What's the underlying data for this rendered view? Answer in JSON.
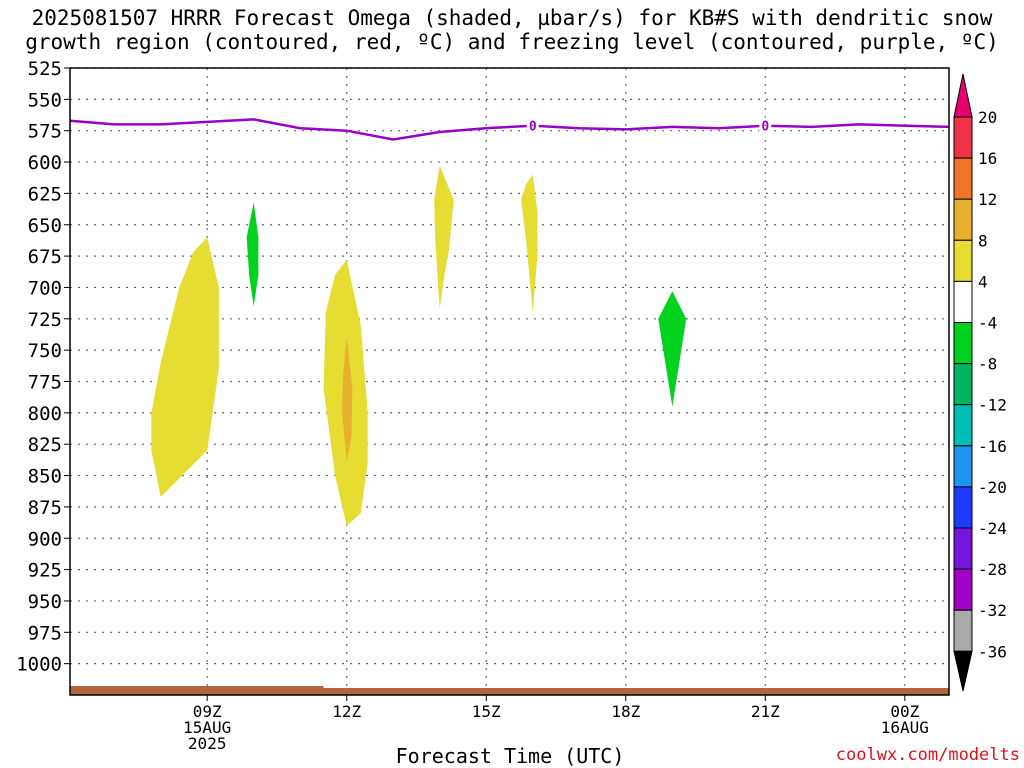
{
  "title_line1": "2025081507 HRRR Forecast Omega (shaded, µbar/s) for KB#S with dendritic snow",
  "title_line2": "growth region (contoured, red, ºC) and freezing level (contoured, purple, ºC)",
  "xlabel": "Forecast Time (UTC)",
  "credit": "coolwx.com/modelts",
  "chart_data": {
    "type": "contour",
    "x_unit": "hours after 2025-08-15 00Z",
    "y_axis_reversed": true,
    "xlim": [
      6.05,
      24.95
    ],
    "ylim": [
      1025,
      525
    ],
    "y_ticks": [
      525,
      550,
      575,
      600,
      625,
      650,
      675,
      700,
      725,
      750,
      775,
      800,
      825,
      850,
      875,
      900,
      925,
      950,
      975,
      1000
    ],
    "y_tick_labels": [
      "525",
      "550",
      "575",
      "600",
      "625",
      "650",
      "675",
      "700",
      "725",
      "750",
      "775",
      "800",
      "825",
      "850",
      "875",
      "900",
      "925",
      "950",
      "975",
      "1000"
    ],
    "x_ticks": [
      {
        "x": 9,
        "lines": [
          "09Z",
          "15AUG",
          "2025"
        ]
      },
      {
        "x": 12,
        "lines": [
          "12Z"
        ]
      },
      {
        "x": 15,
        "lines": [
          "15Z"
        ]
      },
      {
        "x": 18,
        "lines": [
          "18Z"
        ]
      },
      {
        "x": 21,
        "lines": [
          "21Z"
        ]
      },
      {
        "x": 24,
        "lines": [
          "00Z",
          "16AUG"
        ]
      }
    ],
    "grid": true,
    "freezing_level": {
      "contour_value": "0",
      "color": "#9b00c8",
      "label_positions": [
        16,
        21
      ],
      "points": [
        [
          6.05,
          567
        ],
        [
          7,
          570
        ],
        [
          8,
          570
        ],
        [
          9,
          568
        ],
        [
          10,
          566
        ],
        [
          11,
          573
        ],
        [
          12,
          575
        ],
        [
          13,
          582
        ],
        [
          14,
          576
        ],
        [
          15,
          573
        ],
        [
          16,
          571
        ],
        [
          17,
          573
        ],
        [
          18,
          574
        ],
        [
          19,
          572
        ],
        [
          20,
          573
        ],
        [
          21,
          571
        ],
        [
          22,
          572
        ],
        [
          23,
          570
        ],
        [
          24.95,
          572
        ]
      ]
    },
    "shaded_regions": [
      {
        "range": "4 to 8",
        "color": "#e6dc32",
        "points": [
          [
            9.0,
            660
          ],
          [
            9.25,
            700
          ],
          [
            9.25,
            765
          ],
          [
            9.0,
            830
          ],
          [
            8.0,
            867
          ],
          [
            7.8,
            830
          ],
          [
            7.8,
            800
          ],
          [
            8.0,
            760
          ],
          [
            8.4,
            700
          ],
          [
            8.7,
            672
          ]
        ]
      },
      {
        "range": "-4 to -8",
        "color": "#00d21e",
        "points": [
          [
            10.0,
            632
          ],
          [
            10.1,
            660
          ],
          [
            10.1,
            690
          ],
          [
            10.0,
            715
          ],
          [
            9.9,
            690
          ],
          [
            9.85,
            660
          ]
        ]
      },
      {
        "range": "4 to 8",
        "color": "#e6dc32",
        "points": [
          [
            12.0,
            678
          ],
          [
            12.3,
            730
          ],
          [
            12.45,
            800
          ],
          [
            12.45,
            840
          ],
          [
            12.3,
            880
          ],
          [
            12.0,
            890
          ],
          [
            11.75,
            850
          ],
          [
            11.5,
            780
          ],
          [
            11.55,
            720
          ],
          [
            11.75,
            690
          ]
        ]
      },
      {
        "range": "8 to 12",
        "color": "#e6af2d",
        "points": [
          [
            12.0,
            740
          ],
          [
            12.12,
            780
          ],
          [
            12.1,
            820
          ],
          [
            12.0,
            838
          ],
          [
            11.9,
            800
          ],
          [
            11.92,
            770
          ]
        ]
      },
      {
        "range": "4 to 8",
        "color": "#e6dc32",
        "points": [
          [
            14.0,
            603
          ],
          [
            14.3,
            630
          ],
          [
            14.2,
            670
          ],
          [
            14.1,
            690
          ],
          [
            14.0,
            717
          ],
          [
            13.9,
            660
          ],
          [
            13.88,
            630
          ]
        ]
      },
      {
        "range": "4 to 8",
        "color": "#e6dc32",
        "points": [
          [
            16.0,
            610
          ],
          [
            16.1,
            640
          ],
          [
            16.1,
            675
          ],
          [
            16.0,
            720
          ],
          [
            15.85,
            660
          ],
          [
            15.75,
            630
          ],
          [
            15.85,
            618
          ]
        ]
      },
      {
        "range": "-4 to -8",
        "color": "#00d21e",
        "points": [
          [
            19.0,
            703
          ],
          [
            19.3,
            725
          ],
          [
            19.15,
            760
          ],
          [
            19.0,
            795
          ],
          [
            18.85,
            760
          ],
          [
            18.7,
            725
          ]
        ]
      }
    ],
    "colorbar": {
      "labels": [
        "20",
        "16",
        "12",
        "8",
        "4",
        "-4",
        "-8",
        "-12",
        "-16",
        "-20",
        "-24",
        "-28",
        "-32",
        "-36"
      ],
      "colors": [
        "#f03246",
        "#f07328",
        "#e6af2d",
        "#e6dc32",
        "#ffffff",
        "#00d21e",
        "#00b464",
        "#00beb4",
        "#1e96f0",
        "#1e3cff",
        "#7814dc",
        "#a000c8",
        "#aaaaaa"
      ],
      "top_arrow_color": "#e6006e",
      "bottom_arrow_color": "#000000"
    },
    "terrain_color": "#b4643c"
  }
}
